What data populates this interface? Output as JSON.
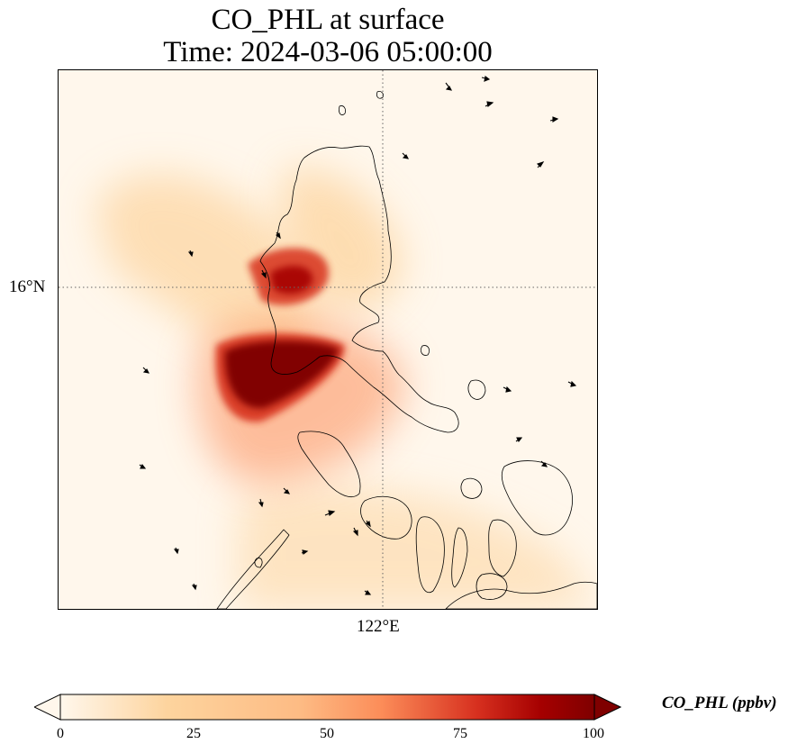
{
  "figure": {
    "title_line1": "CO_PHL at surface",
    "title_line2": "Time: 2024-03-06 05:00:00"
  },
  "map": {
    "gridline_lat_label": "16°N",
    "gridline_lon_label": "122°E",
    "background_color": "#fff7ec",
    "coastline_color": "#000000"
  },
  "colorbar": {
    "label": "CO_PHL (ppbv)",
    "colormap": [
      "#fff7ec",
      "#fdd49e",
      "#fc8d59",
      "#d7301f",
      "#a50000",
      "#7f0000"
    ],
    "ticks": [
      "0",
      "25",
      "50",
      "75",
      "100"
    ],
    "range": [
      0,
      100
    ],
    "extend": "both"
  },
  "plumes": [
    {
      "name": "central-luzon-hotspot",
      "value": 100
    },
    {
      "name": "north-plume",
      "value": 80
    },
    {
      "name": "northwest-plume",
      "value": 30
    },
    {
      "name": "south-haze",
      "value": 20
    }
  ]
}
